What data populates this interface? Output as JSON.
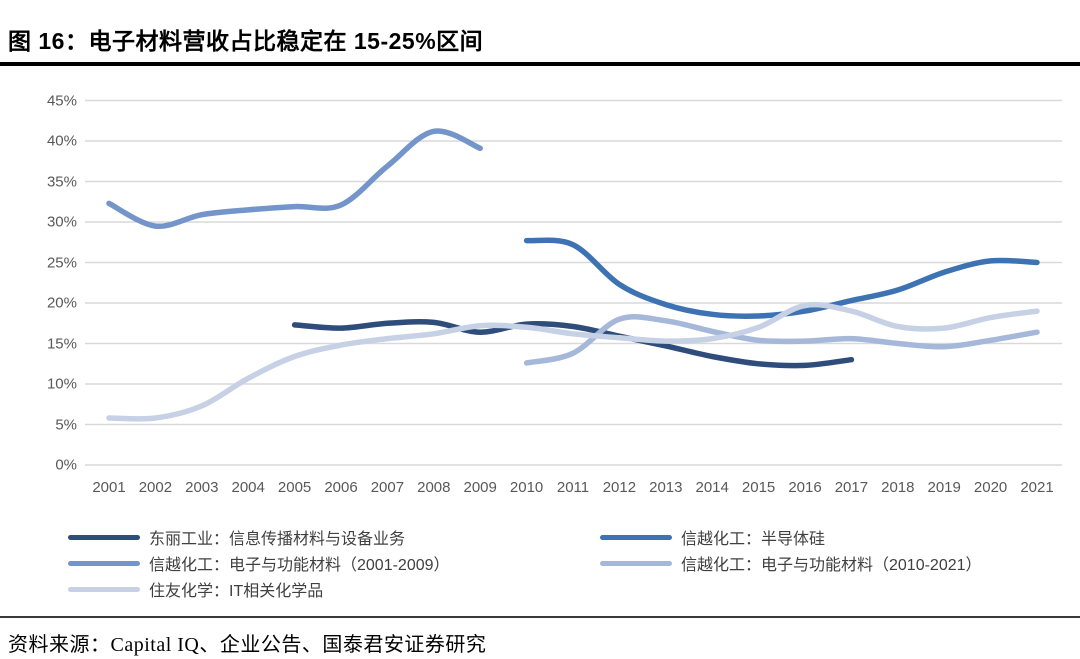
{
  "header": {
    "title": "图 16：电子材料营收占比稳定在 15-25%区间"
  },
  "footer": {
    "source": "资料来源：Capital IQ、企业公告、国泰君安证券研究"
  },
  "chart_data": {
    "type": "line",
    "title": "电子材料营收占比稳定在 15-25%区间",
    "x": [
      2001,
      2002,
      2003,
      2004,
      2005,
      2006,
      2007,
      2008,
      2009,
      2010,
      2011,
      2012,
      2013,
      2014,
      2015,
      2016,
      2017,
      2018,
      2019,
      2020,
      2021
    ],
    "ylim": [
      0,
      45
    ],
    "ytick_step": 5,
    "ytick_suffix": "%",
    "grid": "horizontal-only",
    "gridline_color": "#d9d9d9",
    "axis_text_color": "#595959",
    "legend_position": "bottom",
    "series": [
      {
        "name": "东丽工业：信息传播材料与设备业务",
        "color": "#2E4D7B",
        "start_year": 2005,
        "values": [
          17.3,
          16.9,
          17.5,
          17.6,
          16.4,
          17.4,
          17.1,
          15.9,
          14.7,
          13.4,
          12.5,
          12.3,
          13.0
        ]
      },
      {
        "name": "信越化工：半导体硅",
        "color": "#3E73B3",
        "start_year": 2010,
        "values": [
          27.7,
          27.2,
          22.3,
          19.8,
          18.6,
          18.4,
          19.0,
          20.3,
          21.6,
          23.8,
          25.2,
          25.0
        ]
      },
      {
        "name": "信越化工：电子与功能材料（2001-2009）",
        "color": "#7495C9",
        "start_year": 2001,
        "values": [
          32.3,
          29.5,
          30.9,
          31.5,
          31.9,
          32.1,
          36.9,
          41.2,
          39.1
        ]
      },
      {
        "name": "信越化工：电子与功能材料（2010-2021）",
        "color": "#A5B8DA",
        "start_year": 2010,
        "values": [
          12.6,
          13.8,
          18.0,
          17.8,
          16.5,
          15.4,
          15.3,
          15.6,
          15.0,
          14.6,
          15.4,
          16.4
        ]
      },
      {
        "name": "住友化学：IT相关化学品",
        "color": "#C7D1E5",
        "start_year": 2001,
        "values": [
          5.8,
          5.8,
          7.3,
          10.7,
          13.4,
          14.8,
          15.6,
          16.2,
          17.2,
          17.0,
          16.2,
          15.7,
          15.3,
          15.6,
          17.0,
          19.7,
          19.0,
          17.1,
          16.9,
          18.2,
          19.0
        ]
      }
    ],
    "legend_columns": {
      "left": [
        0,
        2,
        4
      ],
      "right": [
        1,
        3
      ]
    }
  }
}
